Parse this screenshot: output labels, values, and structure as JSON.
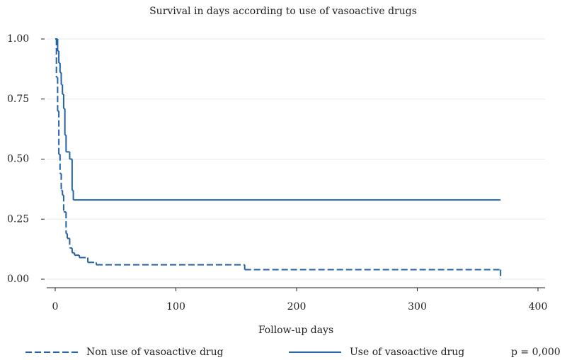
{
  "chart_data": {
    "type": "step",
    "title": "Survival in days according to use of vasoactive drugs",
    "x_label": "Follow-up days",
    "annotation": "p = 0,000",
    "xlim": [
      0,
      400
    ],
    "xticks": [
      0,
      100,
      200,
      300,
      400
    ],
    "ylim": [
      0,
      1
    ],
    "yticks": [
      {
        "value": 0,
        "label": "0.00"
      },
      {
        "value": 0.25,
        "label": "0.25"
      },
      {
        "value": 0.5,
        "label": "0.50"
      },
      {
        "value": 0.75,
        "label": "0.75"
      },
      {
        "value": 1,
        "label": "1.00"
      }
    ],
    "grid": true,
    "series": [
      {
        "name": "Non use of vasoactive drug",
        "color": "#2463a8",
        "dash": true,
        "x": [
          0,
          1,
          2,
          3,
          4,
          5,
          6,
          7,
          9,
          10,
          12,
          14,
          16,
          20,
          27,
          34,
          157,
          369
        ],
        "values": [
          1,
          0.84,
          0.7,
          0.52,
          0.44,
          0.37,
          0.35,
          0.28,
          0.19,
          0.17,
          0.13,
          0.11,
          0.1,
          0.09,
          0.07,
          0.06,
          0.04,
          0
        ]
      },
      {
        "name": "Use of vasoactive drug",
        "color": "#2463a8",
        "dash": false,
        "x": [
          0,
          2,
          3,
          4,
          5,
          6,
          7,
          8,
          9,
          12,
          14,
          15,
          369
        ],
        "values": [
          1,
          0.95,
          0.9,
          0.86,
          0.81,
          0.77,
          0.71,
          0.6,
          0.53,
          0.5,
          0.37,
          0.33,
          0.33
        ]
      }
    ]
  }
}
